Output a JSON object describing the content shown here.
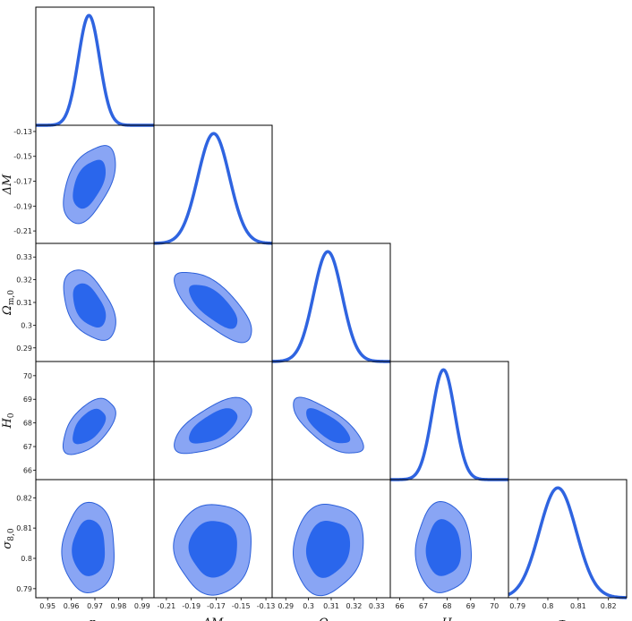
{
  "chart_data": {
    "type": "corner",
    "parameters": [
      {
        "key": "ns",
        "label": "n_s",
        "label_main": "n",
        "label_sub": "s",
        "range": [
          0.945,
          0.995
        ],
        "ticks": [
          "0.95",
          "0.96",
          "0.97",
          "0.98",
          "0.99"
        ],
        "tick_values": [
          0.95,
          0.96,
          0.97,
          0.98,
          0.99
        ],
        "mean": 0.9675,
        "sigma": 0.0045
      },
      {
        "key": "dM",
        "label": "ΔM",
        "label_main": "ΔM",
        "label_sub": "",
        "range": [
          -0.22,
          -0.125
        ],
        "ticks": [
          "-0.21",
          "-0.19",
          "-0.17",
          "-0.15",
          "-0.13"
        ],
        "tick_values": [
          -0.21,
          -0.19,
          -0.17,
          -0.15,
          -0.13
        ],
        "mean": -0.172,
        "sigma": 0.0127
      },
      {
        "key": "om",
        "label": "Ω_m,0",
        "label_main": "Ω",
        "label_sub": "m,0",
        "range": [
          0.284,
          0.336
        ],
        "ticks": [
          "0.29",
          "0.3",
          "0.31",
          "0.32",
          "0.33"
        ],
        "tick_values": [
          0.29,
          0.3,
          0.31,
          0.32,
          0.33
        ],
        "mean": 0.3085,
        "sigma": 0.0063
      },
      {
        "key": "H0",
        "label": "H_0",
        "label_main": "H",
        "label_sub": "0",
        "range": [
          65.6,
          70.6
        ],
        "ticks": [
          "66",
          "67",
          "68",
          "69",
          "70"
        ],
        "tick_values": [
          66,
          67,
          68,
          69,
          70
        ],
        "mean": 67.85,
        "sigma": 0.48
      },
      {
        "key": "s8",
        "label": "σ_8,0",
        "label_main": "σ",
        "label_sub": "8,0",
        "range": [
          0.787,
          0.826
        ],
        "ticks": [
          "0.79",
          "0.8",
          "0.81",
          "0.82"
        ],
        "tick_values": [
          0.79,
          0.8,
          0.81,
          0.82
        ],
        "mean": 0.8033,
        "sigma": 0.0061
      }
    ],
    "contours": [
      {
        "x": "ns",
        "y": "dM",
        "rho": 0.5,
        "levels": [
          0.68,
          0.95
        ]
      },
      {
        "x": "ns",
        "y": "om",
        "rho": -0.48,
        "levels": [
          0.68,
          0.95
        ]
      },
      {
        "x": "dM",
        "y": "om",
        "rho": -0.72,
        "levels": [
          0.68,
          0.95
        ]
      },
      {
        "x": "ns",
        "y": "H0",
        "rho": 0.55,
        "levels": [
          0.68,
          0.95
        ]
      },
      {
        "x": "dM",
        "y": "H0",
        "rho": 0.62,
        "levels": [
          0.68,
          0.95
        ]
      },
      {
        "x": "om",
        "y": "H0",
        "rho": -0.74,
        "levels": [
          0.68,
          0.95
        ]
      },
      {
        "x": "ns",
        "y": "s8",
        "rho": 0.02,
        "levels": [
          0.68,
          0.95
        ]
      },
      {
        "x": "dM",
        "y": "s8",
        "rho": 0.0,
        "levels": [
          0.68,
          0.95
        ]
      },
      {
        "x": "om",
        "y": "s8",
        "rho": 0.12,
        "levels": [
          0.68,
          0.95
        ]
      },
      {
        "x": "H0",
        "y": "s8",
        "rho": 0.0,
        "levels": [
          0.68,
          0.95
        ]
      }
    ],
    "colors": {
      "line": "#2f64e0",
      "fill_inner": "#2a66ec",
      "fill_outer": "#89a5f4",
      "edge": "#2b5fd9"
    }
  }
}
